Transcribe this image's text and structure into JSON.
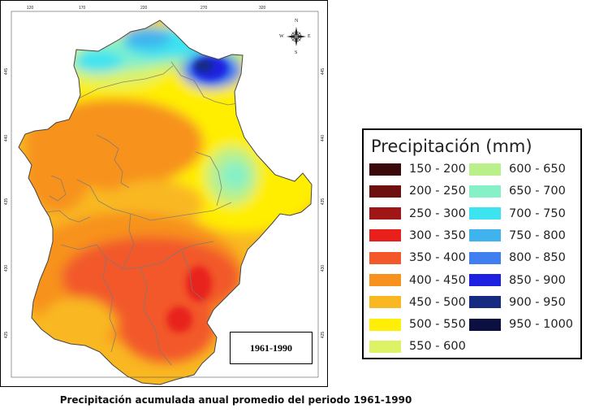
{
  "map": {
    "top_ticks": [
      "120",
      "170",
      "220",
      "270",
      "320"
    ],
    "left_ticks": [
      "445",
      "440",
      "435",
      "430",
      "425"
    ],
    "right_ticks": [
      "445",
      "440",
      "435",
      "430",
      "425"
    ],
    "compass": {
      "n": "N",
      "s": "S",
      "e": "E",
      "w": "W"
    },
    "period_box": "1961-1990"
  },
  "legend": {
    "title": "Precipitación (mm)",
    "items": [
      {
        "label": "150 - 200",
        "color": "#3a0a0a"
      },
      {
        "label": "200 - 250",
        "color": "#6e1010"
      },
      {
        "label": "250 - 300",
        "color": "#a01515"
      },
      {
        "label": "300 - 350",
        "color": "#e8201c"
      },
      {
        "label": "350 - 400",
        "color": "#f2582a"
      },
      {
        "label": "400 - 450",
        "color": "#f7921e"
      },
      {
        "label": "450 - 500",
        "color": "#f9b822"
      },
      {
        "label": "500 - 550",
        "color": "#ffee05"
      },
      {
        "label": "550 - 600",
        "color": "#ddf265"
      },
      {
        "label": "600 - 650",
        "color": "#b9f08a"
      },
      {
        "label": "650 - 700",
        "color": "#86f0c6"
      },
      {
        "label": "700 - 750",
        "color": "#3ee3f0"
      },
      {
        "label": "750 - 800",
        "color": "#3fb3ee"
      },
      {
        "label": "800 - 850",
        "color": "#3f7ff0"
      },
      {
        "label": "850 - 900",
        "color": "#1e22e0"
      },
      {
        "label": "900 - 950",
        "color": "#152a80"
      },
      {
        "label": "950 - 1000",
        "color": "#0c1040"
      }
    ]
  },
  "caption": "Precipitación acumulada anual promedio del periodo 1961-1990"
}
